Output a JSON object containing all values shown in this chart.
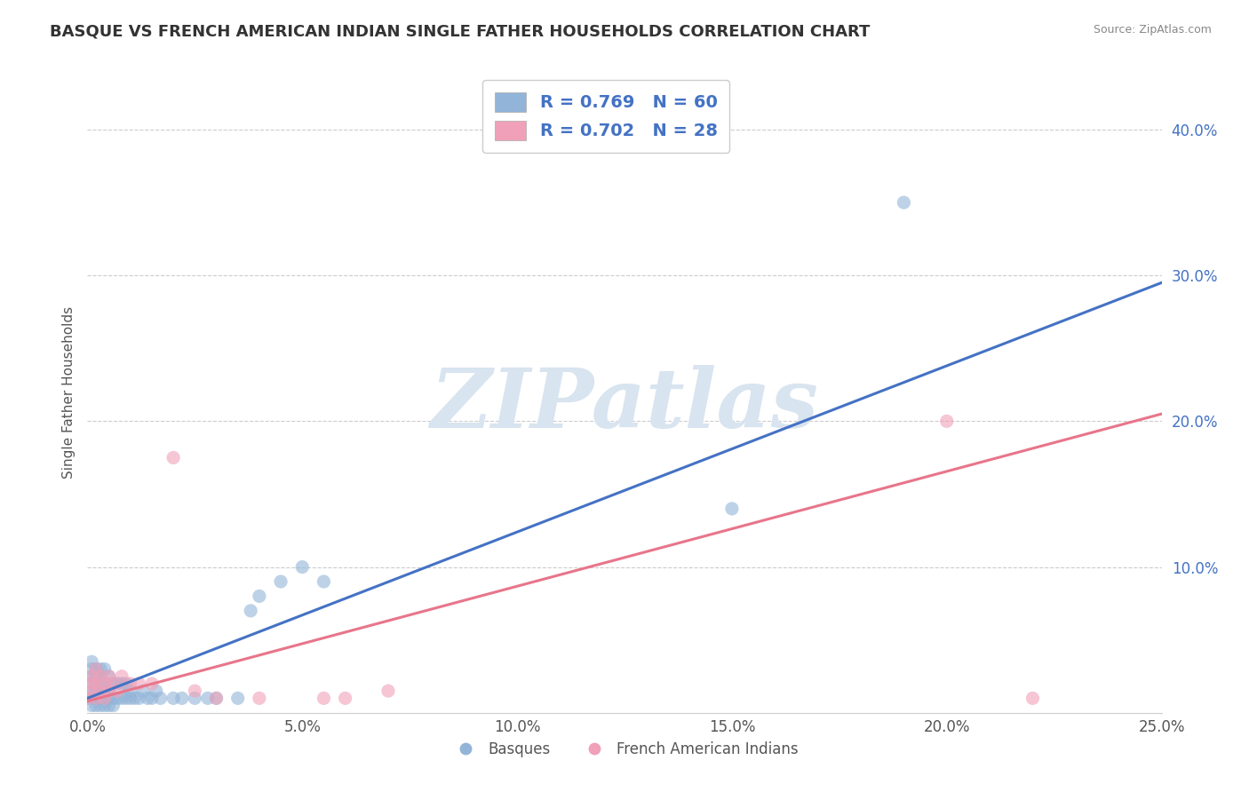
{
  "title": "BASQUE VS FRENCH AMERICAN INDIAN SINGLE FATHER HOUSEHOLDS CORRELATION CHART",
  "source": "Source: ZipAtlas.com",
  "ylabel": "Single Father Households",
  "watermark": "ZIPatlas",
  "xlim": [
    0.0,
    0.25
  ],
  "ylim": [
    0.0,
    0.44
  ],
  "xtick_labels": [
    "0.0%",
    "5.0%",
    "10.0%",
    "15.0%",
    "20.0%",
    "25.0%"
  ],
  "xtick_values": [
    0.0,
    0.05,
    0.1,
    0.15,
    0.2,
    0.25
  ],
  "ytick_labels": [
    "10.0%",
    "20.0%",
    "30.0%",
    "40.0%"
  ],
  "ytick_values": [
    0.1,
    0.2,
    0.3,
    0.4
  ],
  "blue_color": "#92B4D8",
  "pink_color": "#F0A0B8",
  "blue_line_color": "#4472C4",
  "pink_line_color": "#E8758A",
  "legend_blue_label": "R = 0.769   N = 60",
  "legend_pink_label": "R = 0.702   N = 28",
  "legend_text_color": "#4472C4",
  "bottom_legend_basque": "Basques",
  "bottom_legend_french": "French American Indians",
  "blue_scatter_x": [
    0.0,
    0.001,
    0.001,
    0.001,
    0.001,
    0.001,
    0.001,
    0.001,
    0.002,
    0.002,
    0.002,
    0.002,
    0.002,
    0.002,
    0.003,
    0.003,
    0.003,
    0.003,
    0.003,
    0.003,
    0.004,
    0.004,
    0.004,
    0.004,
    0.004,
    0.005,
    0.005,
    0.005,
    0.005,
    0.006,
    0.006,
    0.006,
    0.007,
    0.007,
    0.008,
    0.008,
    0.009,
    0.009,
    0.01,
    0.01,
    0.011,
    0.012,
    0.013,
    0.014,
    0.015,
    0.016,
    0.017,
    0.02,
    0.022,
    0.025,
    0.028,
    0.03,
    0.035,
    0.038,
    0.04,
    0.045,
    0.05,
    0.055,
    0.15,
    0.19
  ],
  "blue_scatter_y": [
    0.01,
    0.005,
    0.01,
    0.015,
    0.02,
    0.025,
    0.03,
    0.035,
    0.005,
    0.01,
    0.015,
    0.02,
    0.025,
    0.03,
    0.005,
    0.01,
    0.015,
    0.02,
    0.025,
    0.03,
    0.005,
    0.01,
    0.015,
    0.02,
    0.03,
    0.005,
    0.01,
    0.015,
    0.025,
    0.005,
    0.01,
    0.02,
    0.01,
    0.02,
    0.01,
    0.02,
    0.01,
    0.02,
    0.01,
    0.015,
    0.01,
    0.01,
    0.015,
    0.01,
    0.01,
    0.015,
    0.01,
    0.01,
    0.01,
    0.01,
    0.01,
    0.01,
    0.01,
    0.07,
    0.08,
    0.09,
    0.1,
    0.09,
    0.14,
    0.35
  ],
  "pink_scatter_x": [
    0.0,
    0.001,
    0.001,
    0.001,
    0.002,
    0.002,
    0.002,
    0.003,
    0.003,
    0.004,
    0.004,
    0.005,
    0.005,
    0.006,
    0.007,
    0.008,
    0.01,
    0.012,
    0.015,
    0.02,
    0.025,
    0.03,
    0.04,
    0.055,
    0.06,
    0.07,
    0.2,
    0.22
  ],
  "pink_scatter_y": [
    0.01,
    0.015,
    0.02,
    0.025,
    0.01,
    0.02,
    0.03,
    0.015,
    0.025,
    0.01,
    0.02,
    0.015,
    0.025,
    0.02,
    0.015,
    0.025,
    0.02,
    0.02,
    0.02,
    0.175,
    0.015,
    0.01,
    0.01,
    0.01,
    0.01,
    0.015,
    0.2,
    0.01
  ],
  "blue_line": {
    "x0": 0.0,
    "y0": 0.01,
    "x1": 0.25,
    "y1": 0.295
  },
  "pink_line": {
    "x0": 0.0,
    "y0": 0.008,
    "x1": 0.25,
    "y1": 0.205
  },
  "background_color": "#FFFFFF",
  "grid_color": "#CCCCCC",
  "title_fontsize": 13,
  "axis_label_fontsize": 11,
  "tick_fontsize": 12,
  "watermark_fontsize": 68,
  "watermark_color": "#D8E4EF",
  "ytick_color": "#4472C4"
}
